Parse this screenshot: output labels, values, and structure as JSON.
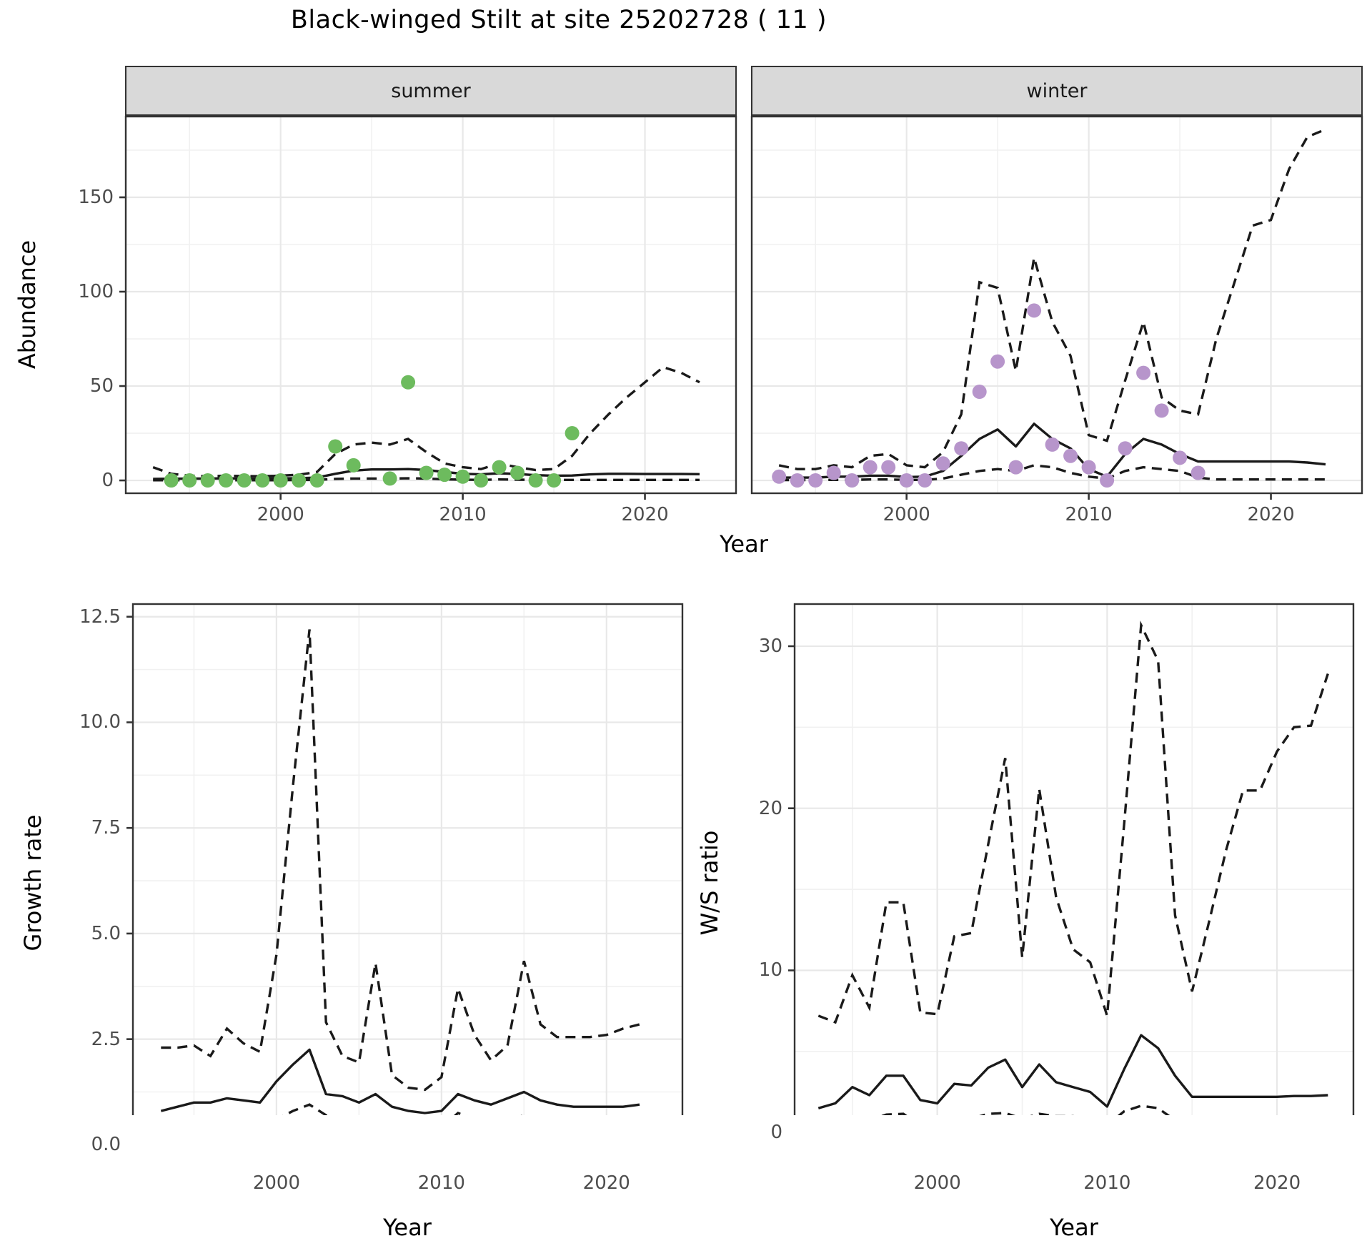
{
  "title": "Black-winged Stilt at site 25202728 ( 11 )",
  "facets": {
    "summer": "summer",
    "winter": "winter"
  },
  "axis_titles": {
    "abundance": "Abundance",
    "year": "Year",
    "growth": "Growth rate",
    "ws": "W/S ratio"
  },
  "colors": {
    "summer_point": "#6dbb5e",
    "winter_point": "#b795cb",
    "line": "#1a1a1a",
    "strip_bg": "#d9d9d9",
    "grid_major": "#e8e8e8",
    "grid_minor": "#f1f1f1",
    "panel_border": "#333333",
    "tick_text": "#4d4d4d"
  },
  "chart_data": [
    {
      "id": "abundance-summer",
      "type": "line",
      "facet": "summer",
      "ylabel": "Abundance",
      "xlabel": "Year",
      "xlim": [
        1991.5,
        2025
      ],
      "ylim": [
        -6.8,
        192.8
      ],
      "xticks": [
        2000,
        2010,
        2020
      ],
      "xticklabels": [
        "2000",
        "2010",
        "2020"
      ],
      "xminor": [
        1995,
        2005,
        2015
      ],
      "yticks": [
        0,
        50,
        100,
        150
      ],
      "yticklabels": [
        "0",
        "50",
        "100",
        "150"
      ],
      "yminor": [
        25,
        75,
        125,
        175
      ],
      "show_ylabels": true,
      "line_years": [
        1993,
        1994,
        1995,
        1996,
        1997,
        1998,
        1999,
        2000,
        2001,
        2002,
        2003,
        2004,
        2005,
        2006,
        2007,
        2008,
        2009,
        2010,
        2011,
        2012,
        2013,
        2014,
        2015,
        2016,
        2017,
        2018,
        2019,
        2020,
        2021,
        2022,
        2023
      ],
      "fit": [
        0.8,
        0.9,
        1.0,
        1.0,
        1.1,
        1.0,
        1.0,
        1.1,
        1.2,
        1.5,
        3.5,
        5.2,
        5.8,
        5.8,
        6.0,
        5.5,
        4.5,
        3.5,
        3.2,
        3.8,
        3.4,
        2.8,
        2.5,
        2.6,
        3.2,
        3.5,
        3.5,
        3.4,
        3.4,
        3.4,
        3.3
      ],
      "upper": [
        7,
        3.5,
        2.5,
        2.2,
        2.5,
        2.3,
        2.2,
        2.5,
        3,
        4.5,
        14,
        19,
        20,
        19,
        22,
        15,
        9,
        7,
        6,
        9,
        7,
        5.5,
        6,
        13,
        25,
        35,
        44,
        52,
        60,
        57,
        52
      ],
      "lower": [
        0.1,
        0.1,
        0.1,
        0.1,
        0.1,
        0.1,
        0.1,
        0.1,
        0.2,
        0.3,
        0.8,
        1.0,
        1.0,
        1.0,
        1.1,
        1.0,
        0.6,
        0.4,
        0.3,
        0.5,
        0.4,
        0.3,
        0.3,
        0.3,
        0.3,
        0.3,
        0.3,
        0.3,
        0.3,
        0.3,
        0.3
      ],
      "obs_years": [
        1994,
        1995,
        1996,
        1997,
        1998,
        1999,
        2000,
        2001,
        2002,
        2003,
        2004,
        2006,
        2007,
        2008,
        2009,
        2010,
        2011,
        2012,
        2013,
        2014,
        2015,
        2016
      ],
      "obs": [
        0,
        0,
        0,
        0,
        0,
        0,
        0,
        0,
        0,
        18,
        8,
        1,
        52,
        4,
        3,
        2,
        0,
        7,
        4,
        0,
        0,
        25
      ],
      "point_color": "#6dbb5e"
    },
    {
      "id": "abundance-winter",
      "type": "line",
      "facet": "winter",
      "ylabel": "Abundance",
      "xlabel": "Year",
      "xlim": [
        1991.5,
        2025
      ],
      "ylim": [
        -6.8,
        192.8
      ],
      "xticks": [
        2000,
        2010,
        2020
      ],
      "xticklabels": [
        "2000",
        "2010",
        "2020"
      ],
      "xminor": [
        1995,
        2005,
        2015
      ],
      "yticks": [
        0,
        50,
        100,
        150
      ],
      "yticklabels": [
        "0",
        "50",
        "100",
        "150"
      ],
      "yminor": [
        25,
        75,
        125,
        175
      ],
      "show_ylabels": false,
      "line_years": [
        1993,
        1994,
        1995,
        1996,
        1997,
        1998,
        1999,
        2000,
        2001,
        2002,
        2003,
        2004,
        2005,
        2006,
        2007,
        2008,
        2009,
        2010,
        2011,
        2012,
        2013,
        2014,
        2015,
        2016,
        2017,
        2018,
        2019,
        2020,
        2021,
        2022,
        2023
      ],
      "fit": [
        1.5,
        1.5,
        1.5,
        2,
        2,
        2.5,
        2.5,
        1.8,
        2,
        5,
        13,
        22,
        27,
        18,
        30,
        22,
        17,
        6,
        2,
        14,
        22,
        19,
        14,
        10,
        10,
        10,
        10,
        10,
        10,
        9.5,
        8.5
      ],
      "upper": [
        8,
        6,
        6,
        8,
        7,
        13,
        14,
        8,
        7,
        15,
        35,
        105,
        102,
        58,
        118,
        84,
        66,
        24,
        21,
        53,
        84,
        44,
        37,
        35,
        75,
        105,
        135,
        138,
        165,
        182,
        186
      ],
      "lower": [
        0.2,
        0.2,
        0.2,
        0.3,
        0.3,
        0.5,
        0.5,
        0.3,
        0.3,
        1,
        3,
        5,
        6,
        5,
        8,
        7,
        4,
        2,
        1,
        5,
        7,
        6,
        5,
        1.5,
        0.5,
        0.5,
        0.5,
        0.5,
        0.5,
        0.5,
        0.5
      ],
      "obs_years": [
        1993,
        1994,
        1995,
        1996,
        1997,
        1998,
        1999,
        2000,
        2001,
        2002,
        2003,
        2004,
        2005,
        2006,
        2007,
        2008,
        2009,
        2010,
        2011,
        2012,
        2013,
        2014,
        2015,
        2016
      ],
      "obs": [
        2,
        0,
        0,
        4,
        0,
        7,
        7,
        0,
        0,
        9,
        17,
        47,
        63,
        7,
        90,
        19,
        13,
        7,
        0,
        17,
        57,
        37,
        12,
        4
      ],
      "point_color": "#b795cb"
    },
    {
      "id": "growth-rate",
      "type": "line",
      "ylabel": "Growth rate",
      "xlabel": "Year",
      "xlim": [
        1991.3,
        2024.6
      ],
      "ylim": [
        -0.4,
        12.8
      ],
      "xticks": [
        2000,
        2010,
        2020
      ],
      "xticklabels": [
        "2000",
        "2010",
        "2020"
      ],
      "xminor": [
        1995,
        2005,
        2015
      ],
      "yticks": [
        0,
        2.5,
        5,
        7.5,
        10,
        12.5
      ],
      "yticklabels": [
        "0.0",
        "2.5",
        "5.0",
        "7.5",
        "10.0",
        "12.5"
      ],
      "yminor": [
        1.25,
        3.75,
        6.25,
        8.75,
        11.25
      ],
      "show_ylabels": true,
      "line_years": [
        1993,
        1994,
        1995,
        1996,
        1997,
        1998,
        1999,
        2000,
        2001,
        2002,
        2003,
        2004,
        2005,
        2006,
        2007,
        2008,
        2009,
        2010,
        2011,
        2012,
        2013,
        2014,
        2015,
        2016,
        2017,
        2018,
        2019,
        2020,
        2021,
        2022
      ],
      "fit": [
        0.8,
        0.9,
        1.0,
        1.0,
        1.1,
        1.05,
        1.0,
        1.5,
        1.9,
        2.25,
        1.2,
        1.15,
        1.0,
        1.2,
        0.9,
        0.8,
        0.75,
        0.8,
        1.2,
        1.05,
        0.95,
        1.1,
        1.25,
        1.05,
        0.95,
        0.9,
        0.9,
        0.9,
        0.9,
        0.95
      ],
      "upper": [
        2.3,
        2.3,
        2.35,
        2.1,
        2.75,
        2.4,
        2.2,
        4.5,
        8.5,
        12.2,
        2.9,
        2.1,
        1.95,
        4.3,
        1.65,
        1.35,
        1.3,
        1.6,
        3.7,
        2.6,
        2.0,
        2.35,
        4.35,
        2.85,
        2.55,
        2.55,
        2.55,
        2.6,
        2.75,
        2.85
      ],
      "lower": [
        0.3,
        0.4,
        0.5,
        0.55,
        0.6,
        0.55,
        0.5,
        0.6,
        0.8,
        0.95,
        0.7,
        0.55,
        0.5,
        0.7,
        0.4,
        0.3,
        0.3,
        0.4,
        0.75,
        0.6,
        0.45,
        0.55,
        0.7,
        0.5,
        0.4,
        0.3,
        0.28,
        0.28,
        0.25,
        0.28
      ],
      "obs_years": [],
      "obs": [],
      "point_color": null
    },
    {
      "id": "ws-ratio",
      "type": "line",
      "ylabel": "W/S ratio",
      "xlabel": "Year",
      "xlim": [
        1991.6,
        2024.5
      ],
      "ylim": [
        -1.8,
        32.6
      ],
      "xticks": [
        2000,
        2010,
        2020
      ],
      "xticklabels": [
        "2000",
        "2010",
        "2020"
      ],
      "xminor": [
        1995,
        2005,
        2015
      ],
      "yticks": [
        0,
        10,
        20,
        30
      ],
      "yticklabels": [
        "0",
        "10",
        "20",
        "30"
      ],
      "yminor": [
        5,
        15,
        25
      ],
      "show_ylabels": true,
      "line_years": [
        1993,
        1994,
        1995,
        1996,
        1997,
        1998,
        1999,
        2000,
        2001,
        2002,
        2003,
        2004,
        2005,
        2006,
        2007,
        2008,
        2009,
        2010,
        2011,
        2012,
        2013,
        2014,
        2015,
        2016,
        2017,
        2018,
        2019,
        2020,
        2021,
        2022,
        2023
      ],
      "fit": [
        1.5,
        1.8,
        2.8,
        2.3,
        3.5,
        3.5,
        2.0,
        1.8,
        3.0,
        2.9,
        4.0,
        4.5,
        2.8,
        4.2,
        3.1,
        2.8,
        2.5,
        1.6,
        3.9,
        6.0,
        5.2,
        3.5,
        2.2,
        2.2,
        2.2,
        2.2,
        2.2,
        2.2,
        2.25,
        2.25,
        2.3
      ],
      "upper": [
        7.2,
        6.8,
        9.7,
        7.7,
        14.2,
        14.2,
        7.4,
        7.3,
        12.1,
        12.3,
        17.8,
        23.1,
        10.8,
        21.2,
        14.5,
        11.3,
        10.5,
        7.2,
        19.0,
        31.3,
        29.1,
        13.4,
        8.7,
        13.0,
        17.4,
        21.1,
        21.1,
        23.5,
        25.0,
        25.1,
        28.3
      ],
      "lower": [
        0.3,
        0.45,
        0.85,
        0.75,
        1.1,
        1.15,
        0.4,
        0.45,
        0.8,
        0.85,
        1.15,
        1.2,
        0.85,
        1.15,
        1.0,
        1.0,
        0.85,
        0.45,
        1.3,
        1.65,
        1.5,
        0.75,
        0.3,
        0.1,
        0.1,
        0.1,
        0.1,
        0.1,
        0.1,
        0.1,
        0.05
      ]
    }
  ]
}
